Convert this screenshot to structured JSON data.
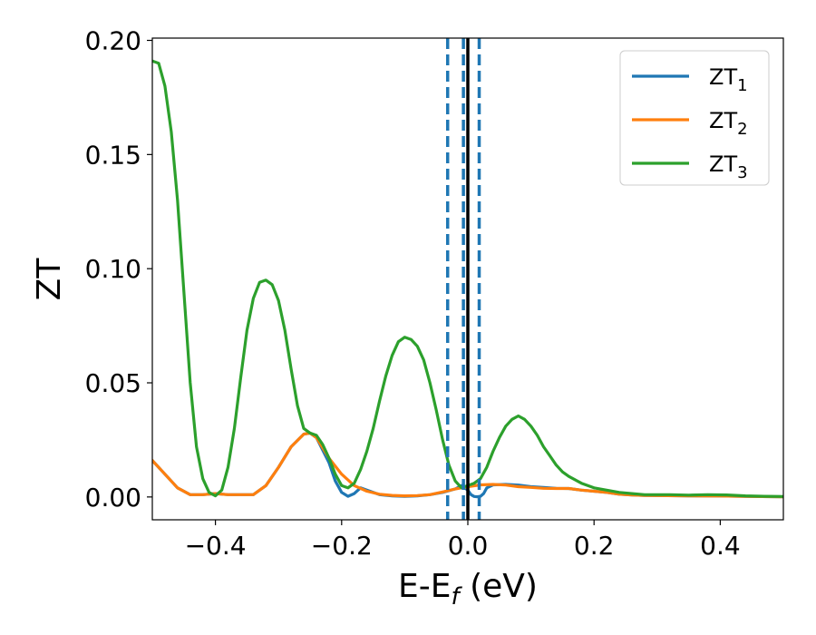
{
  "chart_data": {
    "type": "line",
    "xlabel": "E-E",
    "xlabel_sub": "f",
    "xlabel_unit": " (eV)",
    "ylabel": "ZT",
    "xlim": [
      -0.5,
      0.5
    ],
    "ylim": [
      -0.01,
      0.201
    ],
    "xticks": [
      -0.4,
      -0.2,
      0.0,
      0.2,
      0.4
    ],
    "xtick_labels": [
      "−0.4",
      "−0.2",
      "0.0",
      "0.2",
      "0.4"
    ],
    "yticks": [
      0.0,
      0.05,
      0.1,
      0.15,
      0.2
    ],
    "ytick_labels": [
      "0.00",
      "0.05",
      "0.10",
      "0.15",
      "0.20"
    ],
    "legend_position": "top-right",
    "grid": false,
    "vertical_lines": [
      {
        "x": -0.032,
        "style": "dashed",
        "color": "#1f77b4"
      },
      {
        "x": -0.007,
        "style": "dashed",
        "color": "#1f77b4"
      },
      {
        "x": 0.0,
        "style": "solid",
        "color": "#000000"
      },
      {
        "x": 0.018,
        "style": "dashed",
        "color": "#1f77b4"
      }
    ],
    "series": [
      {
        "name": "ZT",
        "name_sub": "1",
        "color": "#1f77b4",
        "x": [
          -0.5,
          -0.48,
          -0.46,
          -0.44,
          -0.42,
          -0.4,
          -0.38,
          -0.36,
          -0.34,
          -0.32,
          -0.3,
          -0.28,
          -0.26,
          -0.25,
          -0.24,
          -0.22,
          -0.21,
          -0.2,
          -0.19,
          -0.18,
          -0.17,
          -0.16,
          -0.14,
          -0.12,
          -0.1,
          -0.08,
          -0.06,
          -0.04,
          -0.02,
          -0.01,
          0.0,
          0.005,
          0.01,
          0.015,
          0.02,
          0.025,
          0.03,
          0.04,
          0.06,
          0.08,
          0.1,
          0.12,
          0.14,
          0.16,
          0.18,
          0.2,
          0.22,
          0.24,
          0.26,
          0.28,
          0.3,
          0.35,
          0.4,
          0.45,
          0.5
        ],
        "y": [
          0.016,
          0.01,
          0.004,
          0.001,
          0.001,
          0.0015,
          0.001,
          0.001,
          0.001,
          0.005,
          0.013,
          0.022,
          0.0275,
          0.028,
          0.026,
          0.015,
          0.007,
          0.002,
          0.0003,
          0.0015,
          0.004,
          0.003,
          0.001,
          0.0005,
          0.0003,
          0.0005,
          0.001,
          0.002,
          0.0035,
          0.005,
          0.003,
          0.001,
          0.0002,
          0.0001,
          0.0003,
          0.0015,
          0.004,
          0.0053,
          0.0055,
          0.0052,
          0.0045,
          0.0042,
          0.0038,
          0.0037,
          0.003,
          0.0025,
          0.002,
          0.0012,
          0.0009,
          0.0007,
          0.0006,
          0.0005,
          0.0004,
          0.0002,
          0.0001
        ]
      },
      {
        "name": "ZT",
        "name_sub": "2",
        "color": "#ff7f0e",
        "x": [
          -0.5,
          -0.48,
          -0.46,
          -0.44,
          -0.42,
          -0.4,
          -0.38,
          -0.36,
          -0.34,
          -0.32,
          -0.3,
          -0.28,
          -0.26,
          -0.25,
          -0.24,
          -0.22,
          -0.2,
          -0.18,
          -0.16,
          -0.14,
          -0.12,
          -0.1,
          -0.08,
          -0.06,
          -0.04,
          -0.02,
          0.0,
          0.02,
          0.04,
          0.06,
          0.08,
          0.1,
          0.12,
          0.14,
          0.16,
          0.18,
          0.2,
          0.22,
          0.24,
          0.26,
          0.28,
          0.3,
          0.35,
          0.4,
          0.45,
          0.5
        ],
        "y": [
          0.016,
          0.01,
          0.004,
          0.001,
          0.001,
          0.0015,
          0.001,
          0.001,
          0.001,
          0.005,
          0.013,
          0.022,
          0.0275,
          0.028,
          0.026,
          0.017,
          0.01,
          0.005,
          0.0025,
          0.0012,
          0.0007,
          0.0005,
          0.0006,
          0.001,
          0.0022,
          0.0035,
          0.0045,
          0.0053,
          0.0055,
          0.0052,
          0.0045,
          0.0042,
          0.0038,
          0.0037,
          0.0037,
          0.003,
          0.0025,
          0.002,
          0.0012,
          0.0009,
          0.0007,
          0.0006,
          0.0005,
          0.0004,
          0.0002,
          0.0001
        ]
      },
      {
        "name": "ZT",
        "name_sub": "3",
        "color": "#2ca02c",
        "x": [
          -0.5,
          -0.49,
          -0.48,
          -0.47,
          -0.46,
          -0.45,
          -0.44,
          -0.43,
          -0.42,
          -0.41,
          -0.4,
          -0.39,
          -0.38,
          -0.37,
          -0.36,
          -0.35,
          -0.34,
          -0.33,
          -0.32,
          -0.31,
          -0.3,
          -0.29,
          -0.28,
          -0.27,
          -0.26,
          -0.25,
          -0.24,
          -0.23,
          -0.22,
          -0.21,
          -0.2,
          -0.19,
          -0.18,
          -0.17,
          -0.16,
          -0.15,
          -0.14,
          -0.13,
          -0.12,
          -0.11,
          -0.1,
          -0.09,
          -0.08,
          -0.07,
          -0.06,
          -0.05,
          -0.04,
          -0.03,
          -0.02,
          -0.01,
          0.0,
          0.01,
          0.02,
          0.03,
          0.04,
          0.05,
          0.06,
          0.07,
          0.08,
          0.09,
          0.1,
          0.11,
          0.12,
          0.13,
          0.14,
          0.15,
          0.16,
          0.18,
          0.2,
          0.22,
          0.24,
          0.26,
          0.28,
          0.3,
          0.32,
          0.35,
          0.38,
          0.41,
          0.44,
          0.47,
          0.5
        ],
        "y": [
          0.191,
          0.19,
          0.18,
          0.16,
          0.13,
          0.09,
          0.05,
          0.022,
          0.008,
          0.002,
          0.0005,
          0.003,
          0.013,
          0.03,
          0.052,
          0.073,
          0.087,
          0.094,
          0.095,
          0.093,
          0.086,
          0.073,
          0.056,
          0.04,
          0.03,
          0.028,
          0.027,
          0.023,
          0.017,
          0.01,
          0.005,
          0.004,
          0.006,
          0.012,
          0.02,
          0.03,
          0.042,
          0.053,
          0.062,
          0.068,
          0.07,
          0.069,
          0.066,
          0.06,
          0.05,
          0.038,
          0.025,
          0.014,
          0.007,
          0.004,
          0.005,
          0.006,
          0.008,
          0.013,
          0.02,
          0.026,
          0.031,
          0.034,
          0.0355,
          0.034,
          0.031,
          0.027,
          0.022,
          0.018,
          0.014,
          0.011,
          0.009,
          0.006,
          0.004,
          0.003,
          0.002,
          0.0015,
          0.001,
          0.001,
          0.001,
          0.0008,
          0.001,
          0.0009,
          0.0005,
          0.0003,
          0.0002
        ]
      }
    ]
  }
}
